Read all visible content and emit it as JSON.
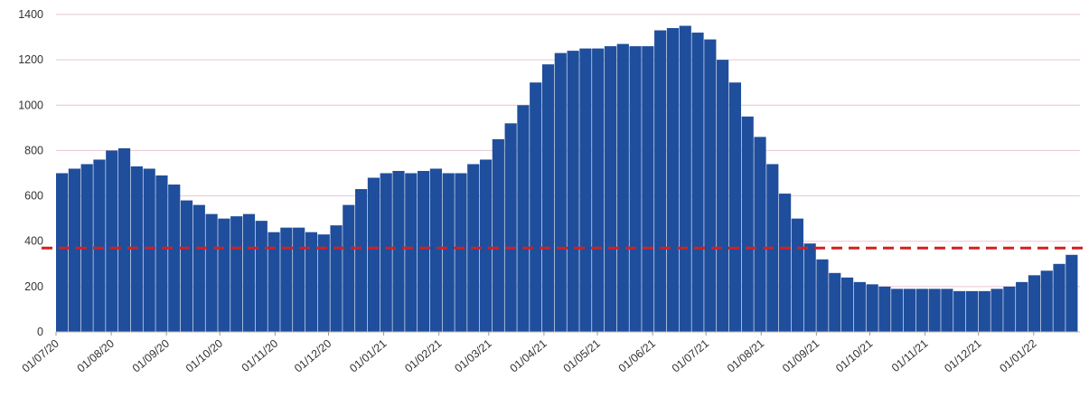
{
  "chart_data": {
    "type": "bar",
    "x": [
      "01/07/20",
      "08/07/20",
      "15/07/20",
      "22/07/20",
      "29/07/20",
      "05/08/20",
      "12/08/20",
      "19/08/20",
      "26/08/20",
      "02/09/20",
      "09/09/20",
      "16/09/20",
      "23/09/20",
      "30/09/20",
      "07/10/20",
      "14/10/20",
      "21/10/20",
      "28/10/20",
      "04/11/20",
      "11/11/20",
      "18/11/20",
      "25/11/20",
      "02/12/20",
      "09/12/20",
      "16/12/20",
      "23/12/20",
      "30/12/20",
      "06/01/21",
      "13/01/21",
      "20/01/21",
      "27/01/21",
      "03/02/21",
      "10/02/21",
      "17/02/21",
      "24/02/21",
      "03/03/21",
      "10/03/21",
      "17/03/21",
      "24/03/21",
      "31/03/21",
      "07/04/21",
      "14/04/21",
      "21/04/21",
      "28/04/21",
      "05/05/21",
      "12/05/21",
      "19/05/21",
      "26/05/21",
      "02/06/21",
      "09/06/21",
      "16/06/21",
      "23/06/21",
      "30/06/21",
      "07/07/21",
      "14/07/21",
      "21/07/21",
      "28/07/21",
      "04/08/21",
      "11/08/21",
      "18/08/21",
      "25/08/21",
      "01/09/21",
      "08/09/21",
      "15/09/21",
      "22/09/21",
      "29/09/21",
      "06/10/21",
      "13/10/21",
      "20/10/21",
      "27/10/21",
      "03/11/21",
      "10/11/21",
      "17/11/21",
      "24/11/21",
      "01/12/21",
      "08/12/21",
      "15/12/21",
      "22/12/21",
      "29/12/21",
      "05/01/22",
      "12/01/22",
      "19/01/22"
    ],
    "values": [
      700,
      720,
      740,
      760,
      800,
      810,
      730,
      720,
      690,
      650,
      580,
      560,
      520,
      500,
      510,
      520,
      490,
      440,
      460,
      460,
      440,
      430,
      470,
      560,
      630,
      680,
      700,
      710,
      700,
      710,
      720,
      700,
      700,
      740,
      760,
      850,
      920,
      1000,
      1100,
      1180,
      1230,
      1240,
      1250,
      1250,
      1260,
      1270,
      1260,
      1260,
      1330,
      1340,
      1350,
      1320,
      1290,
      1200,
      1100,
      950,
      860,
      740,
      610,
      500,
      390,
      320,
      260,
      240,
      220,
      210,
      200,
      190,
      190,
      190,
      190,
      190,
      180,
      180,
      180,
      190,
      200,
      220,
      250,
      270,
      300,
      340
    ],
    "color": "#1f4e9c",
    "xlim": [
      "01/07/20",
      "26/01/22"
    ],
    "xticks": [
      "01/07/20",
      "01/08/20",
      "01/09/20",
      "01/10/20",
      "01/11/20",
      "01/12/20",
      "01/01/21",
      "01/02/21",
      "01/03/21",
      "01/04/21",
      "01/05/21",
      "01/06/21",
      "01/07/21",
      "01/08/21",
      "01/09/21",
      "01/10/21",
      "01/11/21",
      "01/12/21",
      "01/01/22"
    ],
    "ylim": [
      0,
      1400
    ],
    "yticks": [
      0,
      200,
      400,
      600,
      800,
      1000,
      1200,
      1400
    ],
    "grid": true,
    "reference_line": {
      "value": 370,
      "color": "#d42020"
    }
  }
}
